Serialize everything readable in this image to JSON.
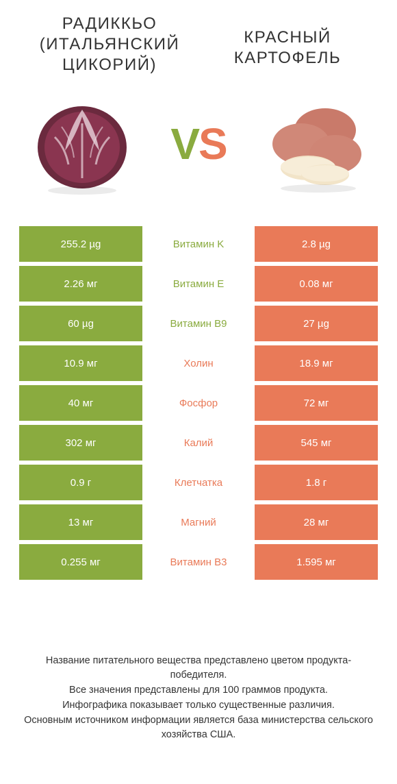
{
  "header": {
    "left_title": "РАДИККЬО (ИТАЛЬЯНСКИЙ ЦИКОРИЙ)",
    "right_title": "КРАСНЫЙ КАРТОФЕЛЬ",
    "vs_v": "V",
    "vs_s": "S"
  },
  "colors": {
    "left_bar": "#8aab3f",
    "right_bar": "#e97a58",
    "left_text": "#8aab3f",
    "right_text": "#e97a58",
    "neutral": "#999999"
  },
  "rows": [
    {
      "left": "255.2 µg",
      "label": "Витамин K",
      "right": "2.8 µg",
      "winner": "left"
    },
    {
      "left": "2.26 мг",
      "label": "Витамин E",
      "right": "0.08 мг",
      "winner": "left"
    },
    {
      "left": "60 µg",
      "label": "Витамин B9",
      "right": "27 µg",
      "winner": "left"
    },
    {
      "left": "10.9 мг",
      "label": "Холин",
      "right": "18.9 мг",
      "winner": "right"
    },
    {
      "left": "40 мг",
      "label": "Фосфор",
      "right": "72 мг",
      "winner": "right"
    },
    {
      "left": "302 мг",
      "label": "Калий",
      "right": "545 мг",
      "winner": "right"
    },
    {
      "left": "0.9 г",
      "label": "Клетчатка",
      "right": "1.8 г",
      "winner": "right"
    },
    {
      "left": "13 мг",
      "label": "Магний",
      "right": "28 мг",
      "winner": "right"
    },
    {
      "left": "0.255 мг",
      "label": "Витамин B3",
      "right": "1.595 мг",
      "winner": "right"
    }
  ],
  "footer": {
    "line1": "Название питательного вещества представлено цветом продукта-победителя.",
    "line2": "Все значения представлены для 100 граммов продукта.",
    "line3": "Инфографика показывает только существенные различия.",
    "line4": "Основным источником информации является база министерства сельского хозяйства США."
  }
}
